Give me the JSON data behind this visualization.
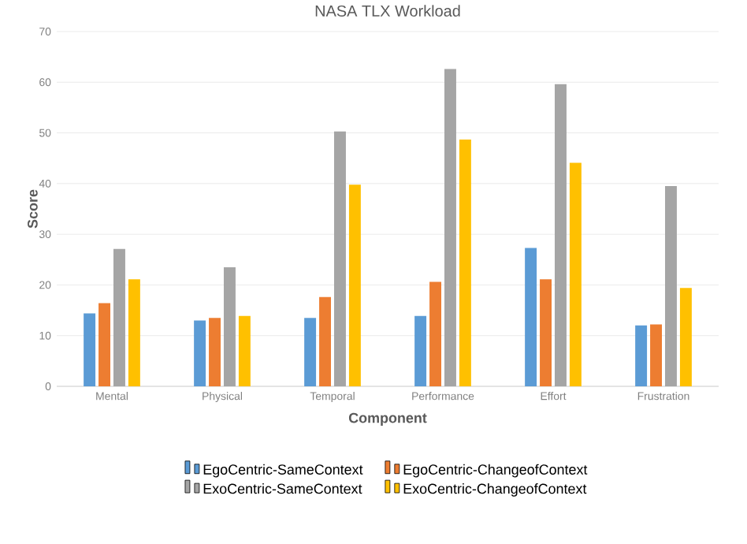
{
  "chart_data": {
    "type": "bar",
    "title": "NASA TLX Workload",
    "xlabel": "Component",
    "ylabel": "Score",
    "categories": [
      "Mental",
      "Physical",
      "Temporal",
      "Performance",
      "Effort",
      "Frustration"
    ],
    "series": [
      {
        "name": "EgoCentric-SameContext",
        "color": "#5b9bd5",
        "values": [
          14.4,
          13.0,
          13.5,
          13.9,
          27.3,
          12.0
        ]
      },
      {
        "name": "EgoCentric-ChangeofContext",
        "color": "#ed7d31",
        "values": [
          16.4,
          13.5,
          17.6,
          20.6,
          21.1,
          12.2
        ]
      },
      {
        "name": "ExoCentric-SameContext",
        "color": "#a5a5a5",
        "values": [
          27.1,
          23.5,
          50.3,
          62.6,
          59.6,
          39.5
        ]
      },
      {
        "name": "ExoCentric-ChangeofContext",
        "color": "#ffc000",
        "values": [
          21.1,
          13.9,
          39.8,
          48.7,
          44.1,
          19.4
        ]
      }
    ],
    "ylim": [
      0,
      70
    ],
    "yticks": [
      0,
      10,
      20,
      30,
      40,
      50,
      60,
      70
    ],
    "grid": "y",
    "legend": "bottom"
  }
}
